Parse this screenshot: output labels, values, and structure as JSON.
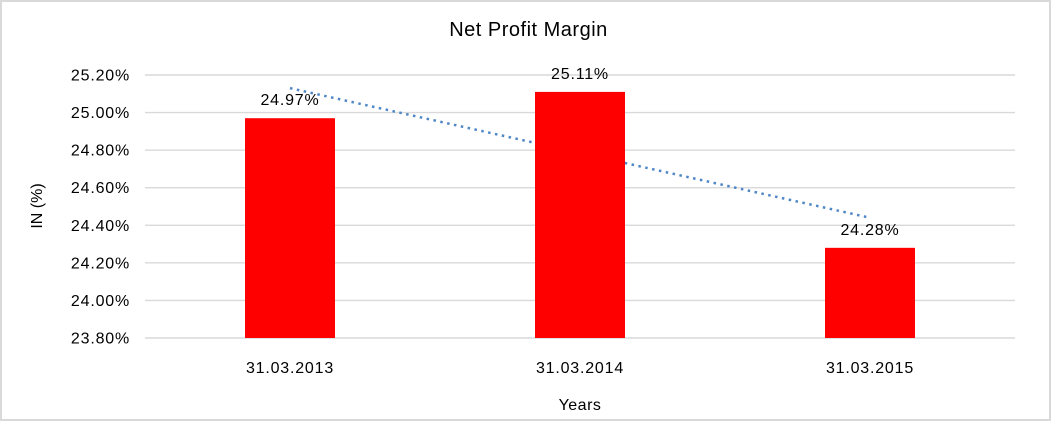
{
  "chart_data": {
    "type": "bar",
    "title": "Net Profit Margin",
    "xlabel": "Years",
    "ylabel": "IN (%)",
    "categories": [
      "31.03.2013",
      "31.03.2014",
      "31.03.2015"
    ],
    "values": [
      24.97,
      25.11,
      24.28
    ],
    "data_labels": [
      "24.97%",
      "25.11%",
      "24.28%"
    ],
    "ylim": [
      23.8,
      25.2
    ],
    "ytick_step": 0.2,
    "ytick_labels": [
      "25.20%",
      "25.00%",
      "24.80%",
      "24.60%",
      "24.40%",
      "24.20%",
      "24.00%",
      "23.80%"
    ],
    "grid": true,
    "legend": "none",
    "bar_color": "#ff0000",
    "gridline_color": "#d9d9d9",
    "frame_color": "#d9d9d9",
    "text_color": "#000000",
    "trendline": {
      "style": "dotted",
      "color": "#4e86c6",
      "start_value": 25.13,
      "end_value": 24.44
    }
  }
}
